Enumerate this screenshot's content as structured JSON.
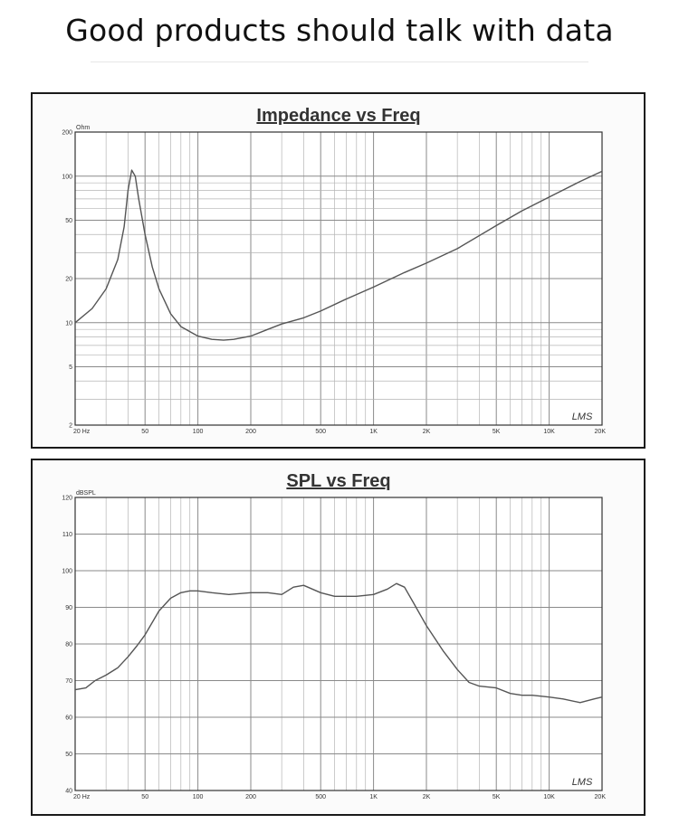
{
  "page": {
    "headline": "Good products should talk with data"
  },
  "chart_data": [
    {
      "type": "line",
      "title": "Impedance vs Freq",
      "ylabel": "Ohm",
      "xscale": "log",
      "yscale": "log",
      "xlim": [
        20,
        20000
      ],
      "ylim": [
        2,
        200
      ],
      "grid": true,
      "x_tick_labels": [
        {
          "v": 20,
          "label": "20  Hz"
        },
        {
          "v": 50,
          "label": "50"
        },
        {
          "v": 100,
          "label": "100"
        },
        {
          "v": 200,
          "label": "200"
        },
        {
          "v": 500,
          "label": "500"
        },
        {
          "v": 1000,
          "label": "1K"
        },
        {
          "v": 2000,
          "label": "2K"
        },
        {
          "v": 5000,
          "label": "5K"
        },
        {
          "v": 10000,
          "label": "10K"
        },
        {
          "v": 20000,
          "label": "20K"
        }
      ],
      "y_tick_labels": [
        {
          "v": 200,
          "label": "200"
        },
        {
          "v": 100,
          "label": "100"
        },
        {
          "v": 50,
          "label": "50"
        },
        {
          "v": 20,
          "label": "20"
        },
        {
          "v": 10,
          "label": "10"
        },
        {
          "v": 5,
          "label": "5"
        },
        {
          "v": 2,
          "label": "2"
        }
      ],
      "watermark": "LMS",
      "series": [
        {
          "x": [
            20,
            25,
            30,
            35,
            38,
            40,
            42,
            44,
            46,
            50,
            55,
            60,
            70,
            80,
            100,
            120,
            140,
            160,
            200,
            250,
            300,
            400,
            500,
            700,
            1000,
            1500,
            2000,
            3000,
            5000,
            7000,
            10000,
            15000,
            20000
          ],
          "y": [
            10,
            12.5,
            17,
            27,
            45,
            80,
            110,
            100,
            70,
            40,
            24,
            17,
            11.5,
            9.4,
            8.1,
            7.7,
            7.6,
            7.7,
            8.1,
            9,
            9.8,
            10.8,
            12,
            14.5,
            17.5,
            22,
            25.5,
            32,
            46,
            58,
            72,
            92,
            108
          ]
        }
      ]
    },
    {
      "type": "line",
      "title": "SPL vs Freq",
      "ylabel": "dBSPL",
      "xscale": "log",
      "xlim": [
        20,
        20000
      ],
      "ylim": [
        40,
        120
      ],
      "grid": true,
      "x_tick_labels": [
        {
          "v": 20,
          "label": "20  Hz"
        },
        {
          "v": 50,
          "label": "50"
        },
        {
          "v": 100,
          "label": "100"
        },
        {
          "v": 200,
          "label": "200"
        },
        {
          "v": 500,
          "label": "500"
        },
        {
          "v": 1000,
          "label": "1K"
        },
        {
          "v": 2000,
          "label": "2K"
        },
        {
          "v": 5000,
          "label": "5K"
        },
        {
          "v": 10000,
          "label": "10K"
        },
        {
          "v": 20000,
          "label": "20K"
        }
      ],
      "y_tick_labels": [
        {
          "v": 120,
          "label": "120"
        },
        {
          "v": 110,
          "label": "110"
        },
        {
          "v": 100,
          "label": "100"
        },
        {
          "v": 90,
          "label": "90"
        },
        {
          "v": 80,
          "label": "80"
        },
        {
          "v": 70,
          "label": "70"
        },
        {
          "v": 60,
          "label": "60"
        },
        {
          "v": 50,
          "label": "50"
        },
        {
          "v": 40,
          "label": "40"
        }
      ],
      "watermark": "LMS",
      "series": [
        {
          "x": [
            20,
            23,
            26,
            30,
            35,
            40,
            45,
            50,
            60,
            70,
            80,
            90,
            100,
            120,
            150,
            200,
            250,
            300,
            350,
            400,
            500,
            600,
            800,
            1000,
            1200,
            1350,
            1500,
            1700,
            2000,
            2500,
            3000,
            3500,
            4000,
            5000,
            6000,
            7000,
            8000,
            10000,
            12000,
            15000,
            18000,
            20000
          ],
          "y": [
            67.5,
            68,
            70,
            71.5,
            73.5,
            76.5,
            79.5,
            82.5,
            89,
            92.5,
            94,
            94.5,
            94.5,
            94,
            93.5,
            94,
            94,
            93.5,
            95.5,
            96,
            94,
            93,
            93,
            93.5,
            95,
            96.5,
            95.5,
            91,
            85,
            78,
            73,
            69.5,
            68.5,
            68,
            66.5,
            66,
            66,
            65.5,
            65,
            64,
            65,
            65.5
          ]
        }
      ]
    }
  ]
}
